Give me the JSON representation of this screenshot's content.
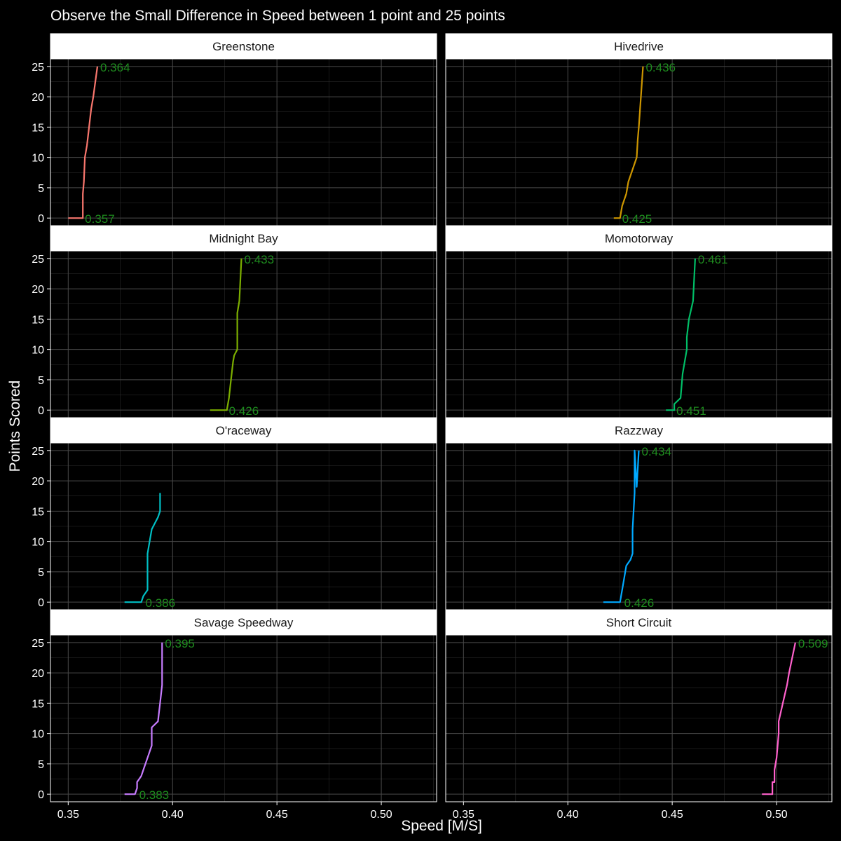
{
  "chart_data": {
    "type": "line",
    "title": "Observe the Small Difference in Speed between 1 point and 25 points",
    "xlabel": "Speed [M/S]",
    "ylabel": "Points Scored",
    "xlim": [
      0.3415,
      0.5265
    ],
    "ylim": [
      -1.25,
      26.25
    ],
    "x_ticks": [
      0.35,
      0.4,
      0.45,
      0.5
    ],
    "x_tick_labels": [
      "0.35",
      "0.40",
      "0.45",
      "0.50"
    ],
    "y_ticks": [
      0,
      5,
      10,
      15,
      20,
      25
    ],
    "y_tick_labels": [
      "0",
      "5",
      "10",
      "15",
      "20",
      "25"
    ],
    "label_color": "#1e8c1e",
    "panels": [
      {
        "name": "Greenstone",
        "color": "#F8766D",
        "points": [
          [
            0.35,
            0
          ],
          [
            0.357,
            0
          ],
          [
            0.357,
            4
          ],
          [
            0.3575,
            6
          ],
          [
            0.358,
            10
          ],
          [
            0.359,
            12
          ],
          [
            0.36,
            15
          ],
          [
            0.361,
            18
          ],
          [
            0.362,
            20
          ],
          [
            0.364,
            25
          ]
        ],
        "label_low": "0.357",
        "label_low_x": 0.357,
        "label_low_y": 0,
        "label_high": "0.364",
        "label_high_x": 0.364,
        "label_high_y": 25
      },
      {
        "name": "Hivedrive",
        "color": "#CD9600",
        "points": [
          [
            0.422,
            0
          ],
          [
            0.425,
            0
          ],
          [
            0.426,
            2
          ],
          [
            0.428,
            4
          ],
          [
            0.429,
            6
          ],
          [
            0.431,
            8
          ],
          [
            0.433,
            10
          ],
          [
            0.4335,
            13
          ],
          [
            0.434,
            15
          ],
          [
            0.435,
            20
          ],
          [
            0.436,
            25
          ]
        ],
        "label_low": "0.425",
        "label_low_x": 0.425,
        "label_low_y": 0,
        "label_high": "0.436",
        "label_high_x": 0.436,
        "label_high_y": 25
      },
      {
        "name": "Midnight Bay",
        "color": "#7CAE00",
        "points": [
          [
            0.418,
            0
          ],
          [
            0.426,
            0
          ],
          [
            0.427,
            2
          ],
          [
            0.428,
            5
          ],
          [
            0.429,
            8
          ],
          [
            0.4295,
            9
          ],
          [
            0.431,
            10
          ],
          [
            0.431,
            13
          ],
          [
            0.431,
            16
          ],
          [
            0.432,
            18
          ],
          [
            0.433,
            25
          ]
        ],
        "label_low": "0.426",
        "label_low_x": 0.426,
        "label_low_y": 0,
        "label_high": "0.433",
        "label_high_x": 0.433,
        "label_high_y": 25
      },
      {
        "name": "Momotorway",
        "color": "#00BE67",
        "points": [
          [
            0.447,
            0
          ],
          [
            0.451,
            0
          ],
          [
            0.451,
            1
          ],
          [
            0.454,
            2
          ],
          [
            0.455,
            6
          ],
          [
            0.456,
            8
          ],
          [
            0.457,
            10
          ],
          [
            0.457,
            12
          ],
          [
            0.458,
            15
          ],
          [
            0.46,
            18
          ],
          [
            0.461,
            25
          ]
        ],
        "label_low": "0.451",
        "label_low_x": 0.451,
        "label_low_y": 0,
        "label_high": "0.461",
        "label_high_x": 0.461,
        "label_high_y": 25
      },
      {
        "name": "O'raceway",
        "color": "#00BFC4",
        "points": [
          [
            0.377,
            0
          ],
          [
            0.385,
            0
          ],
          [
            0.386,
            1
          ],
          [
            0.388,
            2
          ],
          [
            0.388,
            6
          ],
          [
            0.388,
            8
          ],
          [
            0.389,
            10
          ],
          [
            0.39,
            12
          ],
          [
            0.393,
            14
          ],
          [
            0.394,
            15
          ],
          [
            0.394,
            18
          ]
        ],
        "label_low": "0.386",
        "label_low_x": 0.386,
        "label_low_y": 0,
        "label_high": "",
        "label_high_x": 0.394,
        "label_high_y": 18
      },
      {
        "name": "Razzway",
        "color": "#00A9FF",
        "points": [
          [
            0.417,
            0
          ],
          [
            0.425,
            0
          ],
          [
            0.426,
            2
          ],
          [
            0.427,
            4
          ],
          [
            0.428,
            6
          ],
          [
            0.43,
            7
          ],
          [
            0.431,
            8
          ],
          [
            0.431,
            12
          ],
          [
            0.432,
            18
          ],
          [
            0.432,
            25
          ],
          [
            0.433,
            19
          ],
          [
            0.434,
            25
          ]
        ],
        "label_low": "0.426",
        "label_low_x": 0.426,
        "label_low_y": 0,
        "label_high": "0.434",
        "label_high_x": 0.434,
        "label_high_y": 25
      },
      {
        "name": "Savage Speedway",
        "color": "#C77CFF",
        "points": [
          [
            0.377,
            0
          ],
          [
            0.382,
            0
          ],
          [
            0.383,
            1
          ],
          [
            0.383,
            2
          ],
          [
            0.385,
            3
          ],
          [
            0.386,
            4
          ],
          [
            0.388,
            6
          ],
          [
            0.39,
            8
          ],
          [
            0.39,
            11
          ],
          [
            0.393,
            12
          ],
          [
            0.394,
            15
          ],
          [
            0.395,
            18
          ],
          [
            0.395,
            25
          ]
        ],
        "label_low": "0.383",
        "label_low_x": 0.383,
        "label_low_y": 0,
        "label_high": "0.395",
        "label_high_x": 0.395,
        "label_high_y": 25
      },
      {
        "name": "Short Circuit",
        "color": "#FF61CC",
        "points": [
          [
            0.493,
            0
          ],
          [
            0.498,
            0
          ],
          [
            0.498,
            2
          ],
          [
            0.499,
            2
          ],
          [
            0.499,
            4
          ],
          [
            0.5,
            6
          ],
          [
            0.501,
            10
          ],
          [
            0.501,
            12
          ],
          [
            0.503,
            15
          ],
          [
            0.505,
            18
          ],
          [
            0.506,
            20
          ],
          [
            0.509,
            25
          ]
        ],
        "label_low": "",
        "label_low_x": 0.498,
        "label_low_y": 0,
        "label_high": "0.509",
        "label_high_x": 0.509,
        "label_high_y": 25
      }
    ]
  }
}
